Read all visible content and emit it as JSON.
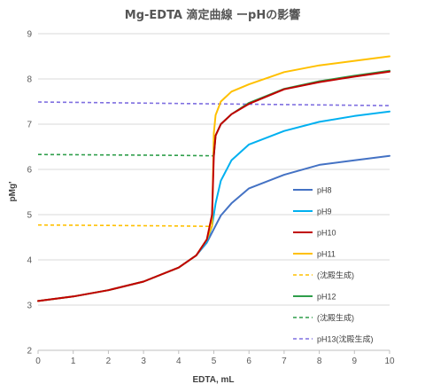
{
  "chart_data": {
    "type": "line",
    "title": "Mg-EDTA 滴定曲線 ーpHの影響",
    "xlabel": "EDTA, mL",
    "ylabel": "pMg'",
    "xlim": [
      0,
      10
    ],
    "ylim": [
      2,
      9
    ],
    "xticks": [
      0,
      1,
      2,
      3,
      4,
      5,
      6,
      7,
      8,
      9,
      10
    ],
    "yticks": [
      2,
      3,
      4,
      5,
      6,
      7,
      8,
      9
    ],
    "grid": true,
    "legend_position": "right",
    "series": [
      {
        "name": "pH8",
        "color": "#4472C4",
        "dash": "solid",
        "points": [
          [
            0,
            3.09
          ],
          [
            1,
            3.19
          ],
          [
            2,
            3.33
          ],
          [
            3,
            3.52
          ],
          [
            4,
            3.83
          ],
          [
            4.5,
            4.1
          ],
          [
            4.8,
            4.38
          ],
          [
            5.0,
            4.68
          ],
          [
            5.2,
            4.98
          ],
          [
            5.5,
            5.25
          ],
          [
            6,
            5.58
          ],
          [
            7,
            5.88
          ],
          [
            8,
            6.1
          ],
          [
            9,
            6.2
          ],
          [
            10,
            6.3
          ]
        ]
      },
      {
        "name": "pH9",
        "color": "#00B0F0",
        "dash": "solid",
        "points": [
          [
            0,
            3.09
          ],
          [
            1,
            3.19
          ],
          [
            2,
            3.33
          ],
          [
            3,
            3.52
          ],
          [
            4,
            3.83
          ],
          [
            4.5,
            4.1
          ],
          [
            4.8,
            4.4
          ],
          [
            4.95,
            4.75
          ],
          [
            5.05,
            5.25
          ],
          [
            5.2,
            5.75
          ],
          [
            5.5,
            6.2
          ],
          [
            6,
            6.55
          ],
          [
            7,
            6.85
          ],
          [
            8,
            7.05
          ],
          [
            9,
            7.18
          ],
          [
            10,
            7.28
          ]
        ]
      },
      {
        "name": "pH10",
        "color": "#C00000",
        "dash": "solid",
        "points": [
          [
            0,
            3.09
          ],
          [
            1,
            3.19
          ],
          [
            2,
            3.33
          ],
          [
            3,
            3.52
          ],
          [
            4,
            3.83
          ],
          [
            4.5,
            4.1
          ],
          [
            4.8,
            4.45
          ],
          [
            4.95,
            5.0
          ],
          [
            5.0,
            6.3
          ],
          [
            5.05,
            6.75
          ],
          [
            5.2,
            7.0
          ],
          [
            5.5,
            7.22
          ],
          [
            6,
            7.45
          ],
          [
            7,
            7.77
          ],
          [
            8,
            7.93
          ],
          [
            9,
            8.05
          ],
          [
            10,
            8.16
          ]
        ]
      },
      {
        "name": "pH11",
        "color": "#FFC000",
        "dash": "solid",
        "points": [
          [
            0,
            3.09
          ],
          [
            1,
            3.19
          ],
          [
            2,
            3.33
          ],
          [
            3,
            3.52
          ],
          [
            4,
            3.83
          ],
          [
            4.5,
            4.1
          ],
          [
            4.8,
            4.45
          ],
          [
            4.95,
            4.75
          ],
          [
            5.0,
            6.8
          ],
          [
            5.05,
            7.2
          ],
          [
            5.2,
            7.5
          ],
          [
            5.5,
            7.72
          ],
          [
            6,
            7.88
          ],
          [
            7,
            8.15
          ],
          [
            8,
            8.3
          ],
          [
            9,
            8.4
          ],
          [
            10,
            8.5
          ]
        ]
      },
      {
        "name": "(沈殿生成)",
        "color": "#FFC000",
        "dash": "dashed",
        "points": [
          [
            0,
            4.77
          ],
          [
            2,
            4.76
          ],
          [
            4,
            4.75
          ],
          [
            4.95,
            4.74
          ]
        ]
      },
      {
        "name": "pH12",
        "color": "#2E9E4A",
        "dash": "solid",
        "points": [
          [
            5.0,
            6.3
          ],
          [
            5.05,
            6.75
          ],
          [
            5.2,
            7.0
          ],
          [
            5.5,
            7.22
          ],
          [
            6,
            7.47
          ],
          [
            7,
            7.78
          ],
          [
            8,
            7.95
          ],
          [
            9,
            8.07
          ],
          [
            10,
            8.18
          ]
        ]
      },
      {
        "name": "(沈殿生成)",
        "color": "#2E9E4A",
        "dash": "dashed",
        "points": [
          [
            0,
            6.33
          ],
          [
            2,
            6.32
          ],
          [
            4,
            6.31
          ],
          [
            5.0,
            6.3
          ]
        ]
      },
      {
        "name": "pH13(沈殿生成)",
        "color": "#7F6FE0",
        "dash": "dashed",
        "points": [
          [
            0,
            7.49
          ],
          [
            5,
            7.45
          ],
          [
            10,
            7.41
          ]
        ]
      }
    ]
  }
}
